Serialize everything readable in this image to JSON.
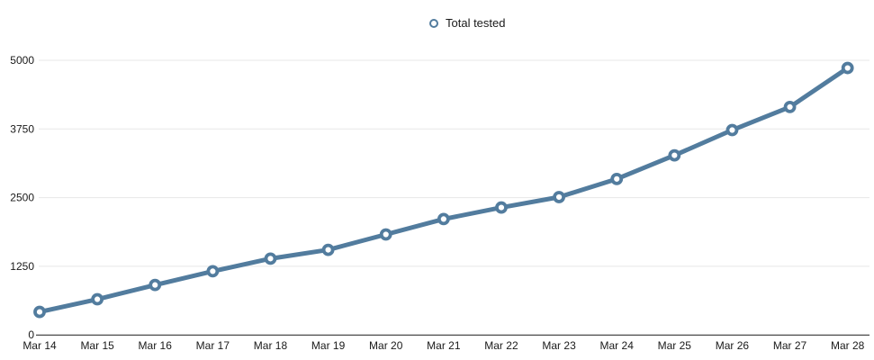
{
  "legend": {
    "label": "Total tested"
  },
  "colors": {
    "line": "#527c9e",
    "marker_fill": "#ffffff",
    "grid": "#e7e7e7",
    "axis": "#1a1a1a",
    "text": "#1a1a1a"
  },
  "chart_data": {
    "type": "line",
    "title": "",
    "xlabel": "",
    "ylabel": "",
    "categories": [
      "Mar 14",
      "Mar 15",
      "Mar 16",
      "Mar 17",
      "Mar 18",
      "Mar 19",
      "Mar 20",
      "Mar 21",
      "Mar 22",
      "Mar 23",
      "Mar 24",
      "Mar 25",
      "Mar 26",
      "Mar 27",
      "Mar 28"
    ],
    "series": [
      {
        "name": "Total tested",
        "values": [
          420,
          650,
          910,
          1160,
          1390,
          1550,
          1830,
          2110,
          2320,
          2510,
          2840,
          3270,
          3730,
          4150,
          4860
        ]
      }
    ],
    "ylim": [
      0,
      5000
    ],
    "yticks": [
      0,
      1250,
      2500,
      3750,
      5000
    ],
    "grid": true,
    "legend_position": "top-center",
    "marker": "open-circle"
  }
}
